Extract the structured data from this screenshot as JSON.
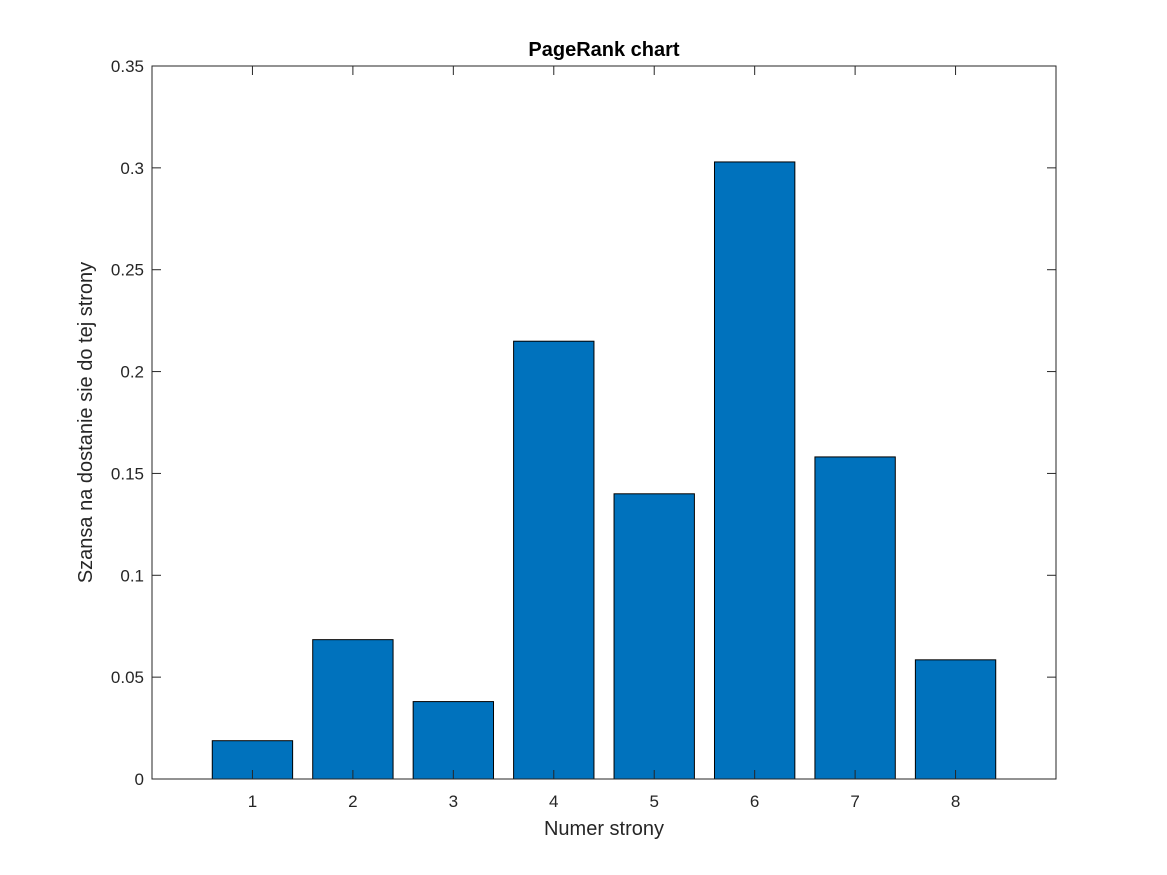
{
  "chart_data": {
    "type": "bar",
    "title": "PageRank chart",
    "xlabel": "Numer strony",
    "ylabel": "Szansa na dostanie sie do tej strony",
    "categories": [
      "1",
      "2",
      "3",
      "4",
      "5",
      "6",
      "7",
      "8"
    ],
    "values": [
      0.0188,
      0.0684,
      0.038,
      0.2149,
      0.14,
      0.3029,
      0.1581,
      0.0585
    ],
    "xlim": [
      0,
      9
    ],
    "ylim": [
      0,
      0.35
    ],
    "yticks": [
      0,
      0.05,
      0.1,
      0.15,
      0.2,
      0.25,
      0.3,
      0.35
    ],
    "ytick_labels": [
      "0",
      "0.05",
      "0.1",
      "0.15",
      "0.2",
      "0.25",
      "0.3",
      "0.35"
    ],
    "grid": false,
    "legend": "none",
    "bar_color": "#0072BD",
    "bar_edge_color": "#000000"
  }
}
